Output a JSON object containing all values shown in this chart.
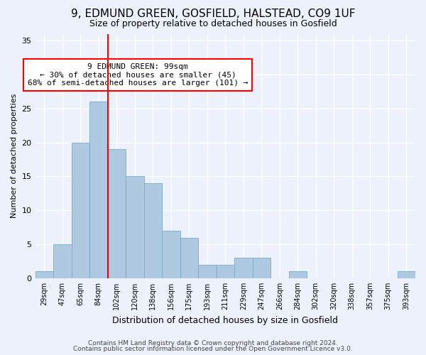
{
  "title1": "9, EDMUND GREEN, GOSFIELD, HALSTEAD, CO9 1UF",
  "title2": "Size of property relative to detached houses in Gosfield",
  "xlabel": "Distribution of detached houses by size in Gosfield",
  "ylabel": "Number of detached properties",
  "categories": [
    "29sqm",
    "47sqm",
    "65sqm",
    "84sqm",
    "102sqm",
    "120sqm",
    "138sqm",
    "156sqm",
    "175sqm",
    "193sqm",
    "211sqm",
    "229sqm",
    "247sqm",
    "266sqm",
    "284sqm",
    "302sqm",
    "320sqm",
    "338sqm",
    "357sqm",
    "375sqm",
    "393sqm"
  ],
  "values": [
    1,
    5,
    20,
    26,
    19,
    15,
    14,
    7,
    6,
    2,
    2,
    3,
    3,
    0,
    1,
    0,
    0,
    0,
    0,
    0,
    1
  ],
  "bar_color": "#aec9e0",
  "bar_edge_color": "#7aaac8",
  "annotation_text": "9 EDMUND GREEN: 99sqm\n← 30% of detached houses are smaller (45)\n68% of semi-detached houses are larger (101) →",
  "ylim": [
    0,
    36
  ],
  "yticks": [
    0,
    5,
    10,
    15,
    20,
    25,
    30,
    35
  ],
  "footer1": "Contains HM Land Registry data © Crown copyright and database right 2024.",
  "footer2": "Contains public sector information licensed under the Open Government Licence v3.0.",
  "bg_color": "#edf1fb",
  "grid_color": "#ffffff",
  "title1_fontsize": 11,
  "title2_fontsize": 9,
  "ylabel_fontsize": 8,
  "xlabel_fontsize": 9
}
